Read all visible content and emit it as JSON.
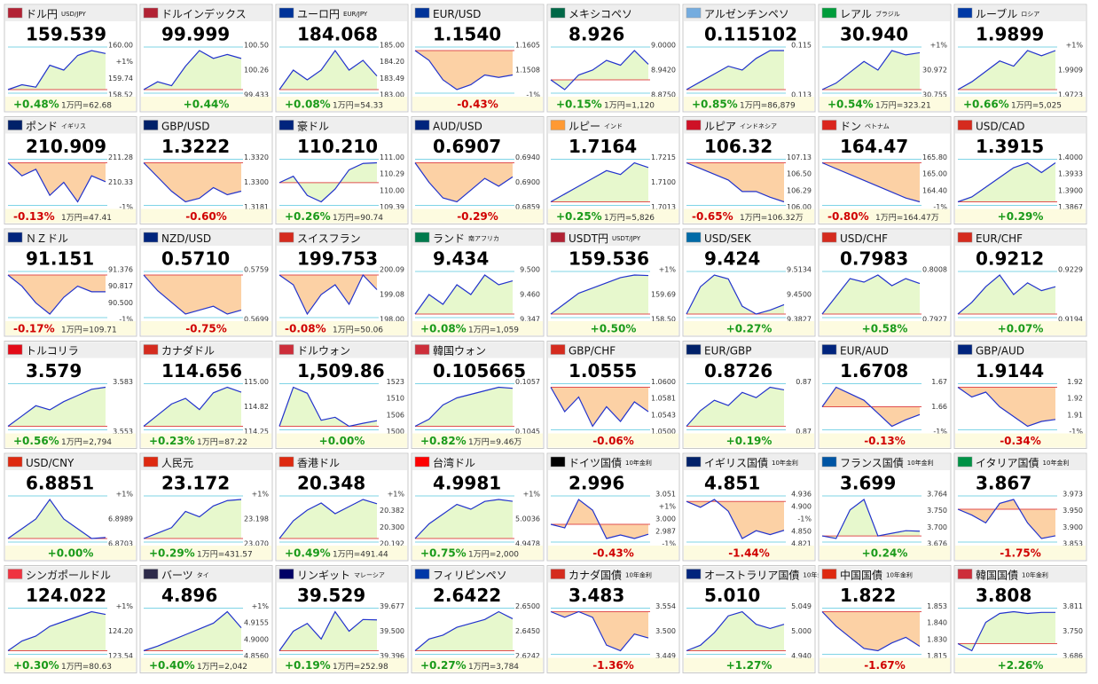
{
  "tiles": [
    {
      "name": "ドル円",
      "sub": "USD/JPY",
      "flag": "#b22234",
      "price": "159.539",
      "change": "+0.48%",
      "note": "1万円=62.68",
      "scale": [
        "160.00",
        "+1%",
        "159.74",
        "158.52"
      ],
      "spark": [
        158.8,
        158.9,
        158.85,
        159.3,
        159.2,
        159.5,
        159.6,
        159.54
      ]
    },
    {
      "name": "ドルインデックス",
      "flag": "#b22234",
      "price": "99.999",
      "change": "+0.44%",
      "scale": [
        "100.50",
        "100.26",
        "99.433"
      ],
      "spark": [
        99.6,
        99.7,
        99.65,
        99.9,
        100.1,
        100.0,
        100.05,
        99.999
      ]
    },
    {
      "name": "ユーロ円",
      "sub": "EUR/JPY",
      "flag": "#003399",
      "price": "184.068",
      "change": "+0.08%",
      "note": "1万円=54.33",
      "scale": [
        "185.00",
        "184.20",
        "183.49",
        "183.00"
      ],
      "spark": [
        184.0,
        184.1,
        184.05,
        184.1,
        184.2,
        184.1,
        184.15,
        184.07
      ]
    },
    {
      "name": "EUR/USD",
      "flag": "#003399",
      "price": "1.1540",
      "change": "-0.43%",
      "scale": [
        "1.1605",
        "1.1508",
        "-1%"
      ],
      "spark": [
        1.159,
        1.157,
        1.153,
        1.151,
        1.152,
        1.154,
        1.1535,
        1.154
      ]
    },
    {
      "name": "メキシコペソ",
      "flag": "#006847",
      "price": "8.926",
      "change": "+0.15%",
      "note": "1万円=1,120",
      "scale": [
        "9.0000",
        "8.9420",
        "8.8750"
      ],
      "spark": [
        8.91,
        8.9,
        8.915,
        8.92,
        8.93,
        8.925,
        8.94,
        8.926
      ]
    },
    {
      "name": "アルゼンチンペソ",
      "flag": "#74acdf",
      "price": "0.115102",
      "change": "+0.85%",
      "note": "1万円=86,879",
      "scale": [
        "0.115",
        "0.113"
      ],
      "spark": [
        0.1141,
        0.1143,
        0.1145,
        0.1147,
        0.1146,
        0.1149,
        0.1151,
        0.1151
      ]
    },
    {
      "name": "レアル",
      "sub": "ブラジル",
      "flag": "#009c3b",
      "price": "30.940",
      "change": "+0.54%",
      "note": "1万円=323.21",
      "scale": [
        "+1%",
        "30.972",
        "30.755"
      ],
      "spark": [
        30.77,
        30.8,
        30.85,
        30.9,
        30.86,
        30.95,
        30.93,
        30.94
      ]
    },
    {
      "name": "ルーブル",
      "sub": "ロシア",
      "flag": "#0039a6",
      "price": "1.9899",
      "change": "+0.66%",
      "note": "1万円=5,025",
      "scale": [
        "+1%",
        "1.9909",
        "1.9723"
      ],
      "spark": [
        1.975,
        1.978,
        1.982,
        1.986,
        1.984,
        1.99,
        1.988,
        1.99
      ]
    },
    {
      "name": "ポンド",
      "sub": "イギリス",
      "flag": "#012169",
      "price": "210.909",
      "change": "-0.13%",
      "note": "1万円=47.41",
      "scale": [
        "211.28",
        "210.33",
        "-1%"
      ],
      "spark": [
        211.2,
        211.0,
        211.1,
        210.7,
        210.9,
        210.6,
        211.0,
        210.91
      ]
    },
    {
      "name": "GBP/USD",
      "flag": "#012169",
      "price": "1.3222",
      "change": "-0.60%",
      "scale": [
        "1.3320",
        "1.3300",
        "1.3181"
      ],
      "spark": [
        1.33,
        1.326,
        1.322,
        1.319,
        1.32,
        1.323,
        1.321,
        1.322
      ]
    },
    {
      "name": "豪ドル",
      "flag": "#00247d",
      "price": "110.210",
      "change": "+0.26%",
      "note": "1万円=90.74",
      "scale": [
        "111.00",
        "110.29",
        "110.00",
        "109.39"
      ],
      "spark": [
        109.9,
        110.0,
        109.7,
        109.6,
        109.8,
        110.1,
        110.2,
        110.21
      ]
    },
    {
      "name": "AUD/USD",
      "flag": "#00247d",
      "price": "0.6907",
      "change": "-0.29%",
      "scale": [
        "0.6940",
        "0.6900",
        "0.6859"
      ],
      "spark": [
        0.6925,
        0.69,
        0.688,
        0.6875,
        0.689,
        0.6905,
        0.6895,
        0.6907
      ]
    },
    {
      "name": "ルピー",
      "sub": "インド",
      "flag": "#ff9933",
      "price": "1.7164",
      "change": "+0.25%",
      "note": "1万円=5,826",
      "scale": [
        "1.7215",
        "1.7100",
        "1.7013"
      ],
      "spark": [
        1.712,
        1.713,
        1.714,
        1.715,
        1.716,
        1.7155,
        1.717,
        1.7164
      ]
    },
    {
      "name": "ルピア",
      "sub": "インドネシア",
      "flag": "#ce1126",
      "price": "106.32",
      "change": "-0.65%",
      "note": "1万円=106.32万",
      "scale": [
        "107.13",
        "106.50",
        "106.29",
        "106.00"
      ],
      "spark": [
        107.0,
        106.9,
        106.8,
        106.7,
        106.5,
        106.5,
        106.4,
        106.32
      ]
    },
    {
      "name": "ドン",
      "sub": "ベトナム",
      "flag": "#da251d",
      "price": "164.47",
      "change": "-0.80%",
      "note": "1万円=164.47万",
      "scale": [
        "165.80",
        "165.00",
        "164.40",
        "-1%"
      ],
      "spark": [
        165.8,
        165.6,
        165.4,
        165.2,
        165.0,
        164.8,
        164.6,
        164.47
      ]
    },
    {
      "name": "USD/CAD",
      "flag": "#d52b1e",
      "price": "1.3915",
      "change": "+0.29%",
      "scale": [
        "1.4000",
        "1.3933",
        "1.3900",
        "1.3867"
      ],
      "spark": [
        1.3875,
        1.388,
        1.389,
        1.39,
        1.391,
        1.3915,
        1.3905,
        1.3915
      ]
    },
    {
      "name": "ＮＺドル",
      "flag": "#00247d",
      "price": "91.151",
      "change": "-0.17%",
      "note": "1万円=109.71",
      "scale": [
        "91.376",
        "90.817",
        "90.500",
        "-1%"
      ],
      "spark": [
        91.3,
        91.2,
        91.05,
        90.95,
        91.1,
        91.2,
        91.15,
        91.15
      ]
    },
    {
      "name": "NZD/USD",
      "flag": "#00247d",
      "price": "0.5710",
      "change": "-0.75%",
      "scale": [
        "0.5759",
        "0.5699"
      ],
      "spark": [
        0.5755,
        0.5735,
        0.572,
        0.5705,
        0.571,
        0.5715,
        0.5705,
        0.571
      ]
    },
    {
      "name": "スイスフラン",
      "flag": "#d52b1e",
      "price": "199.753",
      "change": "-0.08%",
      "note": "1万円=50.06",
      "scale": [
        "200.09",
        "199.08",
        "198.00"
      ],
      "spark": [
        199.9,
        199.8,
        199.5,
        199.7,
        199.8,
        199.6,
        199.9,
        199.75
      ]
    },
    {
      "name": "ランド",
      "sub": "南アフリカ",
      "flag": "#007a4d",
      "price": "9.434",
      "change": "+0.08%",
      "note": "1万円=1,059",
      "scale": [
        "9.500",
        "9.460",
        "9.347"
      ],
      "spark": [
        9.4,
        9.42,
        9.41,
        9.43,
        9.42,
        9.44,
        9.43,
        9.434
      ]
    },
    {
      "name": "USDT円",
      "sub": "USDT/JPY",
      "flag": "#b22234",
      "price": "159.536",
      "change": "+0.50%",
      "scale": [
        "+1%",
        "159.69",
        "158.50"
      ],
      "spark": [
        158.8,
        159.0,
        159.2,
        159.3,
        159.4,
        159.5,
        159.55,
        159.54
      ]
    },
    {
      "name": "USD/SEK",
      "flag": "#006aa7",
      "price": "9.424",
      "change": "+0.27%",
      "scale": [
        "9.5134",
        "9.4500",
        "9.3827"
      ],
      "spark": [
        9.4,
        9.47,
        9.5,
        9.49,
        9.42,
        9.4,
        9.41,
        9.424
      ]
    },
    {
      "name": "USD/CHF",
      "flag": "#d52b1e",
      "price": "0.7983",
      "change": "+0.58%",
      "scale": [
        "0.8008",
        "0.7927"
      ],
      "spark": [
        0.794,
        0.7965,
        0.799,
        0.7985,
        0.7995,
        0.798,
        0.799,
        0.7983
      ]
    },
    {
      "name": "EUR/CHF",
      "flag": "#d52b1e",
      "price": "0.9212",
      "change": "+0.07%",
      "scale": [
        "0.9229",
        "0.9194"
      ],
      "spark": [
        0.9205,
        0.9208,
        0.9212,
        0.9215,
        0.921,
        0.9213,
        0.9211,
        0.9212
      ]
    },
    {
      "name": "トルコリラ",
      "flag": "#e30a17",
      "price": "3.579",
      "change": "+0.56%",
      "note": "1万円=2,794",
      "scale": [
        "3.583",
        "3.553"
      ],
      "spark": [
        3.56,
        3.565,
        3.57,
        3.568,
        3.572,
        3.575,
        3.578,
        3.579
      ]
    },
    {
      "name": "カナダドル",
      "flag": "#d52b1e",
      "price": "114.656",
      "change": "+0.23%",
      "note": "1万円=87.22",
      "scale": [
        "115.00",
        "114.82",
        "114.25"
      ],
      "spark": [
        114.35,
        114.45,
        114.55,
        114.6,
        114.5,
        114.65,
        114.7,
        114.656
      ]
    },
    {
      "name": "ドルウォン",
      "flag": "#cd2e3a",
      "price": "1,509.86",
      "change": "+0.00%",
      "scale": [
        "1523",
        "1510",
        "1506",
        "1500"
      ],
      "spark": [
        1508,
        1521,
        1519,
        1510,
        1511,
        1508,
        1509,
        1509.86
      ]
    },
    {
      "name": "韓国ウォン",
      "flag": "#cd2e3a",
      "price": "0.105665",
      "change": "+0.82%",
      "note": "1万円=9.46万",
      "scale": [
        "0.1057",
        "0.1045"
      ],
      "spark": [
        0.1046,
        0.1048,
        0.1052,
        0.1054,
        0.1055,
        0.1056,
        0.1057,
        0.10567
      ]
    },
    {
      "name": "GBP/CHF",
      "flag": "#d52b1e",
      "price": "1.0555",
      "change": "-0.06%",
      "scale": [
        "1.0600",
        "1.0581",
        "1.0543",
        "1.0500"
      ],
      "spark": [
        1.056,
        1.0555,
        1.0558,
        1.0552,
        1.0556,
        1.0553,
        1.0557,
        1.0555
      ]
    },
    {
      "name": "EUR/GBP",
      "flag": "#012169",
      "price": "0.8726",
      "change": "+0.19%",
      "scale": [
        "0.87",
        "0.87"
      ],
      "spark": [
        0.8712,
        0.8718,
        0.8722,
        0.872,
        0.8725,
        0.8723,
        0.8727,
        0.8726
      ]
    },
    {
      "name": "EUR/AUD",
      "flag": "#00247d",
      "price": "1.6708",
      "change": "-0.13%",
      "scale": [
        "1.67",
        "1.66",
        "-1%"
      ],
      "spark": [
        1.672,
        1.675,
        1.674,
        1.673,
        1.671,
        1.669,
        1.67,
        1.6708
      ]
    },
    {
      "name": "GBP/AUD",
      "flag": "#00247d",
      "price": "1.9144",
      "change": "-0.34%",
      "scale": [
        "1.92",
        "1.92",
        "1.91",
        "-1%"
      ],
      "spark": [
        1.921,
        1.919,
        1.92,
        1.917,
        1.915,
        1.913,
        1.914,
        1.9144
      ]
    },
    {
      "name": "USD/CNY",
      "flag": "#de2910",
      "price": "6.8851",
      "change": "+0.00%",
      "scale": [
        "+1%",
        "6.8989",
        "6.8703"
      ],
      "spark": [
        6.885,
        6.886,
        6.887,
        6.889,
        6.887,
        6.886,
        6.885,
        6.8851
      ]
    },
    {
      "name": "人民元",
      "flag": "#de2910",
      "price": "23.172",
      "change": "+0.29%",
      "note": "1万円=431.57",
      "scale": [
        "+1%",
        "23.198",
        "23.070"
      ],
      "spark": [
        23.1,
        23.11,
        23.12,
        23.15,
        23.14,
        23.16,
        23.17,
        23.172
      ]
    },
    {
      "name": "香港ドル",
      "flag": "#de2910",
      "price": "20.348",
      "change": "+0.49%",
      "note": "1万円=491.44",
      "scale": [
        "+1%",
        "20.382",
        "20.300",
        "20.192"
      ],
      "spark": [
        20.25,
        20.3,
        20.33,
        20.35,
        20.32,
        20.34,
        20.36,
        20.348
      ]
    },
    {
      "name": "台湾ドル",
      "flag": "#fe0000",
      "price": "4.9981",
      "change": "+0.75%",
      "note": "1万円=2,000",
      "scale": [
        "+1%",
        "5.0036",
        "4.9478"
      ],
      "spark": [
        4.96,
        4.975,
        4.985,
        4.995,
        4.99,
        4.998,
        5.0,
        4.9981
      ]
    },
    {
      "name": "ドイツ国債",
      "sub": "10年金利",
      "flag": "#000000",
      "price": "2.996",
      "change": "-0.43%",
      "scale": [
        "3.051",
        "+1%",
        "3.000",
        "2.987",
        "-1%"
      ],
      "spark": [
        3.01,
        3.005,
        3.045,
        3.03,
        2.99,
        2.995,
        2.99,
        2.996
      ]
    },
    {
      "name": "イギリス国債",
      "sub": "10年金利",
      "flag": "#012169",
      "price": "4.851",
      "change": "-1.44%",
      "scale": [
        "4.936",
        "4.900",
        "-1%",
        "4.850",
        "4.821"
      ],
      "spark": [
        4.925,
        4.91,
        4.93,
        4.9,
        4.83,
        4.85,
        4.84,
        4.851
      ]
    },
    {
      "name": "フランス国債",
      "sub": "10年金利",
      "flag": "#0055a4",
      "price": "3.699",
      "change": "+0.24%",
      "scale": [
        "3.764",
        "3.750",
        "3.700",
        "3.676"
      ],
      "spark": [
        3.69,
        3.685,
        3.74,
        3.76,
        3.69,
        3.695,
        3.7,
        3.699
      ]
    },
    {
      "name": "イタリア国債",
      "sub": "10年金利",
      "flag": "#009246",
      "price": "3.867",
      "change": "-1.75%",
      "scale": [
        "3.973",
        "3.950",
        "3.900",
        "3.853"
      ],
      "spark": [
        3.935,
        3.92,
        3.9,
        3.95,
        3.96,
        3.9,
        3.86,
        3.867
      ]
    },
    {
      "name": "シンガポールドル",
      "flag": "#ef3340",
      "price": "124.022",
      "change": "+0.30%",
      "note": "1万円=80.63",
      "scale": [
        "+1%",
        "124.20",
        "123.54"
      ],
      "spark": [
        123.65,
        123.75,
        123.8,
        123.9,
        123.95,
        124.0,
        124.05,
        124.022
      ]
    },
    {
      "name": "バーツ",
      "sub": "タイ",
      "flag": "#2d2a4a",
      "price": "4.896",
      "change": "+0.40%",
      "note": "1万円=2,042",
      "scale": [
        "+1%",
        "4.9155",
        "4.9000",
        "4.8560"
      ],
      "spark": [
        4.876,
        4.88,
        4.885,
        4.89,
        4.895,
        4.9,
        4.91,
        4.896
      ]
    },
    {
      "name": "リンギット",
      "sub": "マレーシア",
      "flag": "#010066",
      "price": "39.529",
      "change": "+0.19%",
      "note": "1万円=252.98",
      "scale": [
        "39.677",
        "39.500",
        "39.396"
      ],
      "spark": [
        39.45,
        39.5,
        39.52,
        39.48,
        39.55,
        39.5,
        39.53,
        39.529
      ]
    },
    {
      "name": "フィリピンペソ",
      "flag": "#0038a8",
      "price": "2.6422",
      "change": "+0.27%",
      "note": "1万円=3,784",
      "scale": [
        "2.6500",
        "2.6450",
        "2.6242"
      ],
      "spark": [
        2.634,
        2.637,
        2.638,
        2.64,
        2.641,
        2.642,
        2.644,
        2.6422
      ]
    },
    {
      "name": "カナダ国債",
      "sub": "10年金利",
      "flag": "#d52b1e",
      "price": "3.483",
      "change": "-1.36%",
      "scale": [
        "3.554",
        "3.500",
        "3.449"
      ],
      "spark": [
        3.53,
        3.52,
        3.53,
        3.52,
        3.47,
        3.46,
        3.49,
        3.483
      ]
    },
    {
      "name": "オーストラリア国債",
      "sub": "10年金利",
      "flag": "#00247d",
      "price": "5.010",
      "change": "+1.27%",
      "scale": [
        "5.049",
        "5.000",
        "4.940"
      ],
      "spark": [
        4.947,
        4.96,
        4.99,
        5.03,
        5.04,
        5.01,
        5.0,
        5.01
      ]
    },
    {
      "name": "中国国債",
      "sub": "10年金利",
      "flag": "#de2910",
      "price": "1.822",
      "change": "-1.67%",
      "scale": [
        "1.853",
        "1.840",
        "1.830",
        "1.815"
      ],
      "spark": [
        1.853,
        1.84,
        1.83,
        1.82,
        1.818,
        1.825,
        1.83,
        1.822
      ]
    },
    {
      "name": "韓国国債",
      "sub": "10年金利",
      "flag": "#cd2e3a",
      "price": "3.808",
      "change": "+2.26%",
      "scale": [
        "3.811",
        "3.750",
        "3.686"
      ],
      "spark": [
        3.72,
        3.7,
        3.78,
        3.805,
        3.81,
        3.805,
        3.808,
        3.808
      ]
    }
  ]
}
